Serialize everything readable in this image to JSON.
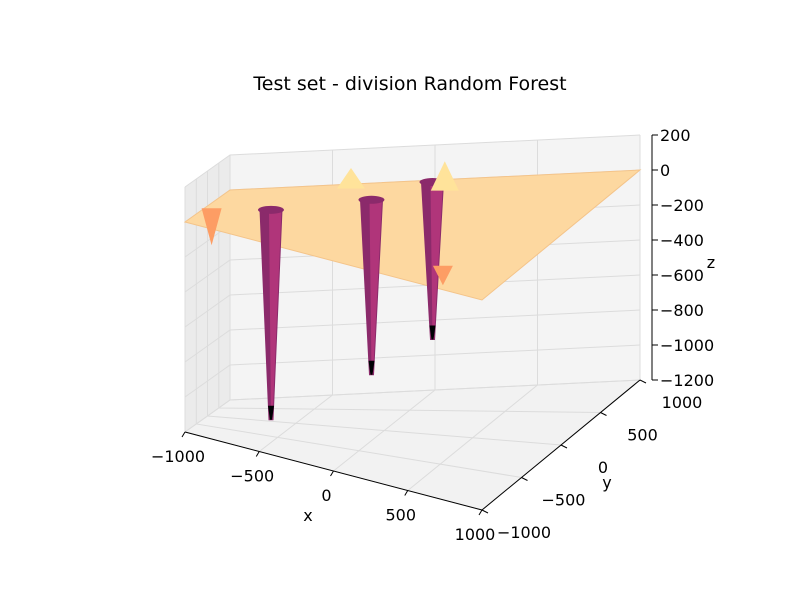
{
  "chart_data": {
    "type": "surface3d",
    "title": "Test set - division Random Forest",
    "xlabel": "x",
    "ylabel": "y",
    "zlabel": "z",
    "xlim": [
      -1000,
      1000
    ],
    "ylim": [
      -1000,
      1000
    ],
    "zlim": [
      -1200,
      200
    ],
    "x_ticks": [
      -1000,
      -500,
      0,
      500,
      1000
    ],
    "y_ticks": [
      -1000,
      -500,
      0,
      500,
      1000
    ],
    "z_ticks": [
      200,
      0,
      -200,
      -400,
      -600,
      -800,
      -1000,
      -1200
    ],
    "x_tick_labels": [
      "−1000",
      "−500",
      "0",
      "500",
      "1000"
    ],
    "y_tick_labels": [
      "−1000",
      "−500",
      "0",
      "500",
      "1000"
    ],
    "z_tick_labels": [
      "200",
      "0",
      "−200",
      "−400",
      "−600",
      "−800",
      "−1000",
      "−1200"
    ],
    "surface_base_z": 0,
    "colormap": "magma",
    "colors": {
      "plane": "#fdd8a0",
      "plane_edge": "#f4c48a",
      "spike_dark": "#8b2a6b",
      "spike_mid": "#b0357a",
      "spike_bottom": "#000004",
      "peak": "#ffe39a",
      "orange": "#fd9d64",
      "pane": "#f2f2f2",
      "grid": "#dcdcdc"
    },
    "features": [
      {
        "kind": "spike",
        "x": -650,
        "y": 50,
        "z": -1200
      },
      {
        "kind": "spike",
        "x": -200,
        "y": 500,
        "z": -1000
      },
      {
        "kind": "spike",
        "x": 0,
        "y": 950,
        "z": -900
      },
      {
        "kind": "dip",
        "x": -950,
        "y": -200,
        "z": -200
      },
      {
        "kind": "dip",
        "x": 600,
        "y": -700,
        "z": -100
      },
      {
        "kind": "bump",
        "x": -400,
        "y": 950,
        "z": 100
      },
      {
        "kind": "bump",
        "x": 100,
        "y": 800,
        "z": 150
      }
    ]
  }
}
